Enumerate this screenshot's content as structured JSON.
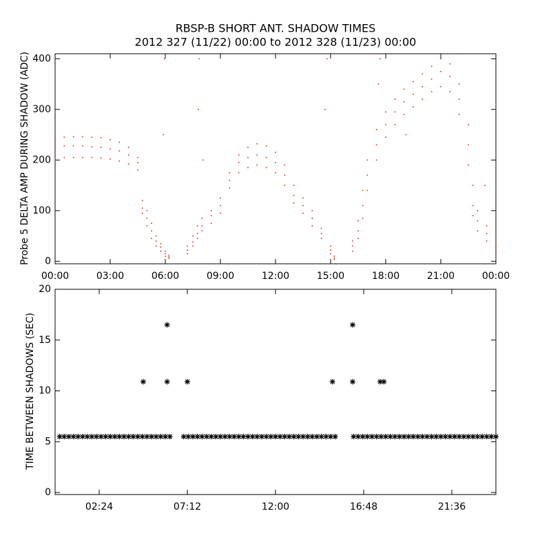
{
  "chart_data": [
    {
      "type": "scatter",
      "title": "RBSP-B SHORT ANT. SHADOW TIMES",
      "subtitle": "2012 327 (11/22) 00:00 to 2012 328 (11/23) 00:00",
      "y_label": "Probe 5 DELTA AMP DURING SHADOW (ADC)",
      "xlim": [
        0,
        24
      ],
      "ylim": [
        -5,
        410
      ],
      "xticks": [
        {
          "value": 0,
          "label": "00:00"
        },
        {
          "value": 3,
          "label": "03:00"
        },
        {
          "value": 6,
          "label": "06:00"
        },
        {
          "value": 9,
          "label": "09:00"
        },
        {
          "value": 12,
          "label": "12:00"
        },
        {
          "value": 15,
          "label": "15:00"
        },
        {
          "value": 18,
          "label": "18:00"
        },
        {
          "value": 21,
          "label": "21:00"
        },
        {
          "value": 24,
          "label": "00:00"
        }
      ],
      "yticks": [
        0,
        100,
        200,
        300,
        400
      ],
      "marker": "dot",
      "series": [
        {
          "color": "#dd2a0e",
          "x": [
            0,
            0,
            0,
            0.5,
            0.5,
            0.5,
            1,
            1,
            1,
            1.5,
            1.5,
            1.5,
            2,
            2,
            2,
            2.5,
            2.5,
            2.5,
            3,
            3,
            3,
            3.5,
            3.5,
            3.5,
            4,
            4,
            4,
            4.5,
            4.5,
            4.5,
            4.75,
            4.75,
            4.75,
            5,
            5,
            5,
            5.25,
            5.25,
            5.25,
            5.5,
            5.5,
            5.5,
            5.75,
            5.75,
            5.75,
            6,
            6,
            6,
            6.2,
            6.2,
            6.2,
            7.2,
            7.2,
            7.2,
            7.5,
            7.5,
            7.5,
            7.75,
            7.75,
            7.75,
            8,
            8,
            8,
            8.5,
            8.5,
            8.5,
            9,
            9,
            9,
            9.5,
            9.5,
            9.5,
            10,
            10,
            10,
            10.5,
            10.5,
            10.5,
            11,
            11,
            11,
            11.5,
            11.5,
            11.5,
            12,
            12,
            12,
            12.5,
            12.5,
            12.5,
            13,
            13,
            13,
            13.5,
            13.5,
            13.5,
            14,
            14,
            14,
            14.5,
            14.5,
            14.5,
            15,
            15,
            15,
            15.2,
            15.2,
            15.2,
            16.2,
            16.2,
            16.2,
            16.5,
            16.5,
            16.5,
            16.75,
            16.75,
            16.75,
            17,
            17,
            17,
            17.5,
            17.5,
            17.5,
            18,
            18,
            18,
            18.5,
            18.5,
            18.5,
            19,
            19,
            19,
            19.5,
            19.5,
            19.5,
            20,
            20,
            20,
            20.5,
            20.5,
            20.5,
            21,
            21,
            21,
            21.5,
            21.5,
            21.5,
            22,
            22,
            22,
            22.5,
            22.5,
            22.5,
            22.75,
            22.75,
            22.75,
            23,
            23,
            23,
            23.5,
            23.5,
            23.5,
            24,
            24,
            24,
            5.9,
            5.95,
            7.8,
            7.85,
            8.05,
            14.7,
            14.8,
            17.6,
            17.7,
            19.1,
            23.4
          ],
          "y": [
            240,
            225,
            200,
            245,
            228,
            205,
            246,
            228,
            205,
            246,
            228,
            205,
            245,
            226,
            205,
            244,
            225,
            204,
            240,
            222,
            202,
            235,
            218,
            198,
            225,
            210,
            192,
            205,
            195,
            180,
            120,
            105,
            95,
            100,
            85,
            70,
            75,
            60,
            45,
            50,
            40,
            30,
            35,
            28,
            20,
            20,
            15,
            10,
            12,
            9,
            6,
            30,
            22,
            15,
            50,
            38,
            30,
            70,
            55,
            45,
            85,
            70,
            60,
            100,
            90,
            75,
            125,
            110,
            95,
            175,
            160,
            145,
            210,
            195,
            175,
            225,
            205,
            185,
            232,
            210,
            190,
            228,
            205,
            185,
            215,
            195,
            175,
            190,
            170,
            150,
            150,
            130,
            115,
            125,
            110,
            95,
            100,
            85,
            70,
            65,
            55,
            45,
            30,
            22,
            15,
            10,
            6,
            3,
            40,
            30,
            20,
            80,
            60,
            45,
            140,
            110,
            85,
            200,
            170,
            140,
            260,
            230,
            200,
            295,
            270,
            245,
            320,
            295,
            270,
            340,
            315,
            290,
            355,
            330,
            305,
            370,
            345,
            320,
            385,
            360,
            335,
            400,
            375,
            345,
            390,
            365,
            335,
            350,
            320,
            290,
            270,
            230,
            190,
            150,
            110,
            90,
            100,
            80,
            60,
            70,
            55,
            40,
            35,
            28,
            20,
            250,
            400,
            300,
            400,
            200,
            300,
            400,
            350,
            400,
            250,
            150
          ]
        }
      ]
    },
    {
      "type": "scatter",
      "y_label": "TIME BETWEEN SHADOWS (SEC)",
      "xlim": [
        0,
        24
      ],
      "ylim": [
        -0.2,
        20
      ],
      "xticks": [
        {
          "value": 2.4,
          "label": "02:24"
        },
        {
          "value": 7.2,
          "label": "07:12"
        },
        {
          "value": 12,
          "label": "12:00"
        },
        {
          "value": 16.8,
          "label": "16:48"
        },
        {
          "value": 21.6,
          "label": "21:36"
        }
      ],
      "yticks": [
        0,
        5,
        10,
        15,
        20
      ],
      "marker": "asterisk",
      "series": [
        {
          "color": "#000000",
          "x": [
            0.25,
            0.5,
            0.75,
            1,
            1.25,
            1.5,
            1.75,
            2,
            2.25,
            2.5,
            2.75,
            3,
            3.25,
            3.5,
            3.75,
            4,
            4.25,
            4.5,
            4.75,
            5,
            5.25,
            5.5,
            5.75,
            6,
            6.25,
            7,
            7.25,
            7.5,
            7.75,
            8,
            8.25,
            8.5,
            8.75,
            9,
            9.25,
            9.5,
            9.75,
            10,
            10.25,
            10.5,
            10.75,
            11,
            11.25,
            11.5,
            11.75,
            12,
            12.25,
            12.5,
            12.75,
            13,
            13.25,
            13.5,
            13.75,
            14,
            14.25,
            14.5,
            14.75,
            15,
            15.25,
            16.25,
            16.5,
            16.75,
            17,
            17.25,
            17.5,
            17.75,
            18,
            18.25,
            18.5,
            18.75,
            19,
            19.25,
            19.5,
            19.75,
            20,
            20.25,
            20.5,
            20.75,
            21,
            21.25,
            21.5,
            21.75,
            22,
            22.25,
            22.5,
            22.75,
            23,
            23.25,
            23.5,
            23.75,
            24,
            4.8,
            6.1,
            6.1,
            7.2,
            15.1,
            16.2,
            16.2,
            17.7,
            17.9
          ],
          "y": [
            5.5,
            5.5,
            5.5,
            5.5,
            5.5,
            5.5,
            5.5,
            5.5,
            5.5,
            5.5,
            5.5,
            5.5,
            5.5,
            5.5,
            5.5,
            5.5,
            5.5,
            5.5,
            5.5,
            5.5,
            5.5,
            5.5,
            5.5,
            5.5,
            5.5,
            5.5,
            5.5,
            5.5,
            5.5,
            5.5,
            5.5,
            5.5,
            5.5,
            5.5,
            5.5,
            5.5,
            5.5,
            5.5,
            5.5,
            5.5,
            5.5,
            5.5,
            5.5,
            5.5,
            5.5,
            5.5,
            5.5,
            5.5,
            5.5,
            5.5,
            5.5,
            5.5,
            5.5,
            5.5,
            5.5,
            5.5,
            5.5,
            5.5,
            5.5,
            5.5,
            5.5,
            5.5,
            5.5,
            5.5,
            5.5,
            5.5,
            5.5,
            5.5,
            5.5,
            5.5,
            5.5,
            5.5,
            5.5,
            5.5,
            5.5,
            5.5,
            5.5,
            5.5,
            5.5,
            5.5,
            5.5,
            5.5,
            5.5,
            5.5,
            5.5,
            5.5,
            5.5,
            5.5,
            5.5,
            5.5,
            5.5,
            10.9,
            16.5,
            10.9,
            10.9,
            10.9,
            16.5,
            10.9,
            10.9,
            10.9
          ]
        }
      ]
    }
  ]
}
